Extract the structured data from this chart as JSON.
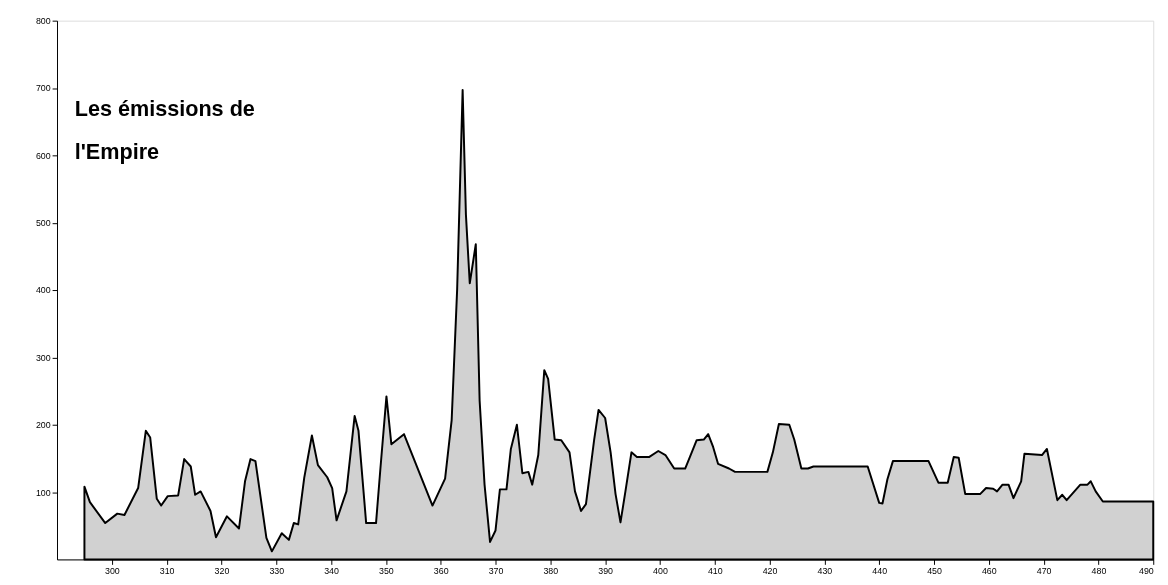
{
  "chart_data": {
    "type": "area",
    "title": "Les émissions de l'Empire",
    "x": [
      295,
      296,
      298.8,
      301,
      302.3,
      304.8,
      306.2,
      307,
      308.2,
      309,
      310.2,
      312.1,
      313.2,
      314.4,
      315.2,
      316.2,
      318,
      319,
      321,
      323.2,
      324.3,
      325.3,
      326.2,
      328.2,
      329.2,
      331,
      332.3,
      333.2,
      334,
      335.1,
      336.5,
      337.6,
      339.3,
      340.2,
      341,
      342.8,
      344.3,
      345,
      346.4,
      348.2,
      349,
      350.1,
      351,
      353.3,
      358.5,
      360.8,
      362,
      363,
      364,
      364.6,
      365.3,
      366.4,
      367.1,
      368,
      369,
      370,
      370.8,
      372,
      372.8,
      373.9,
      374.9,
      376,
      376.7,
      377.8,
      378.9,
      379.6,
      380.8,
      382,
      383.5,
      384.5,
      385.6,
      386.5,
      388,
      388.8,
      390,
      391,
      391.9,
      392.8,
      393.7,
      394.8,
      395.8,
      398,
      399.7,
      401,
      402.6,
      404.6,
      405.6,
      406.7,
      408,
      408.8,
      409.7,
      410.6,
      412.6,
      413.7,
      419.6,
      420.6,
      421.7,
      423.6,
      424.5,
      425.8,
      427,
      428,
      437.9,
      440,
      440.6,
      441.5,
      442.5,
      449,
      450.8,
      452.5,
      453.6,
      454.5,
      455.7,
      458.4,
      459.5,
      460.8,
      461.5,
      462.5,
      463.6,
      464.5,
      465.9,
      466.5,
      469.7,
      470.6,
      472.5,
      473.4,
      474.2,
      476.7,
      478,
      478.6,
      479.5,
      480.8,
      490
    ],
    "series": [
      {
        "color": "#000000",
        "values": [
          108,
          85,
          54,
          68,
          66,
          106,
          191,
          181,
          90,
          80,
          94,
          95,
          149,
          138,
          96,
          101,
          72,
          33,
          64,
          46,
          116,
          149,
          146,
          32,
          12,
          39,
          29,
          54,
          52,
          121,
          184,
          140,
          122,
          106,
          58,
          101,
          213,
          191,
          54,
          54,
          135,
          242,
          171,
          186,
          80,
          120,
          207,
          401,
          697,
          512,
          410,
          468,
          236,
          111,
          26,
          43,
          104,
          104,
          164,
          200,
          128,
          130,
          111,
          155,
          281,
          268,
          178,
          177,
          159,
          101,
          72,
          82,
          178,
          222,
          210,
          159,
          97,
          55,
          101,
          159,
          152,
          152,
          161,
          155,
          135,
          135,
          155,
          177,
          178,
          186,
          167,
          142,
          135,
          130,
          130,
          159,
          201,
          200,
          178,
          135,
          135,
          138,
          138,
          84,
          83,
          119,
          146,
          146,
          114,
          114,
          152,
          151,
          97,
          97,
          106,
          105,
          101,
          111,
          111,
          91,
          116,
          157,
          155,
          164,
          88,
          96,
          88,
          111,
          111,
          116,
          101,
          86,
          86
        ]
      }
    ],
    "xlim": [
      290,
      490
    ],
    "xticks": [
      300,
      310,
      320,
      330,
      340,
      350,
      360,
      370,
      380,
      390,
      400,
      410,
      420,
      430,
      440,
      450,
      460,
      470,
      480,
      490
    ],
    "ylim": [
      0,
      800
    ],
    "yticks": [
      100,
      200,
      300,
      400,
      500,
      600,
      700,
      800
    ],
    "grid": false
  }
}
